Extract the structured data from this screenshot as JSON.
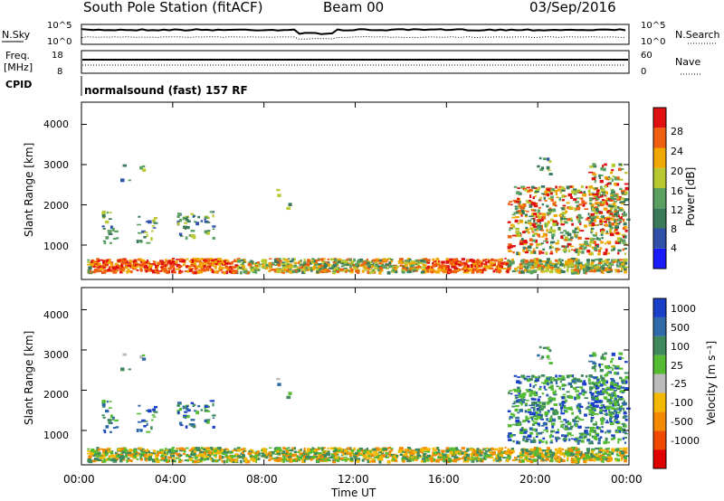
{
  "header": {
    "station": "South Pole Station (fitACF)",
    "beam": "Beam 00",
    "date": "03/Sep/2016"
  },
  "summary_labels": {
    "nsky": "N.Sky",
    "nsearch": "N.Search",
    "freq_line1": "Freq.",
    "freq_line2": "[MHz]",
    "nave": "Nave",
    "cpid": "CPID",
    "noise_tick_top_left": "10^5",
    "noise_tick_bottom_left": "10^0",
    "noise_tick_top_right": "10^5",
    "noise_tick_bottom_right": "10^0",
    "freq_tick_top": "18",
    "freq_tick_bottom": "8",
    "nave_tick_top": "60",
    "nave_tick_bottom": "0",
    "cpid_text": "normalsound (fast) 157 RF"
  },
  "colors": {
    "power_scale": [
      "#1a1aff",
      "#2f4fa8",
      "#3a7a5a",
      "#5aa060",
      "#b8c830",
      "#f0a800",
      "#f06010",
      "#e01010"
    ],
    "velocity_scale": [
      "#e00000",
      "#f04a00",
      "#f58a00",
      "#f5b800",
      "#bbbbbb",
      "#55bb33",
      "#3e8a5c",
      "#2f6aa8",
      "#1a3fc8"
    ]
  },
  "chart_data": [
    {
      "type": "heatmap",
      "name_hint": "power panel",
      "ylabel": "Slant Range [km]",
      "yticks": [
        "1000",
        "2000",
        "3000",
        "4000"
      ],
      "ylim": [
        200,
        4600
      ],
      "colorbar_label": "Power [dB]",
      "colorbar_ticks": [
        "4",
        "8",
        "12",
        "16",
        "20",
        "24",
        "28"
      ],
      "colorbar_range": [
        0,
        32
      ]
    },
    {
      "type": "heatmap",
      "name_hint": "velocity panel",
      "ylabel": "Slant Range [km]",
      "yticks": [
        "1000",
        "2000",
        "3000",
        "4000"
      ],
      "ylim": [
        200,
        4600
      ],
      "colorbar_label": "Velocity [m s⁻¹]",
      "colorbar_ticks": [
        "-1000",
        "-500",
        "-100",
        "-25",
        "25",
        "100",
        "500",
        "1000"
      ],
      "xlabel": "Time UT",
      "xticks": [
        "00:00",
        "04:00",
        "08:00",
        "12:00",
        "16:00",
        "20:00",
        "00:00"
      ],
      "xlim_hours": [
        0,
        24
      ]
    }
  ]
}
